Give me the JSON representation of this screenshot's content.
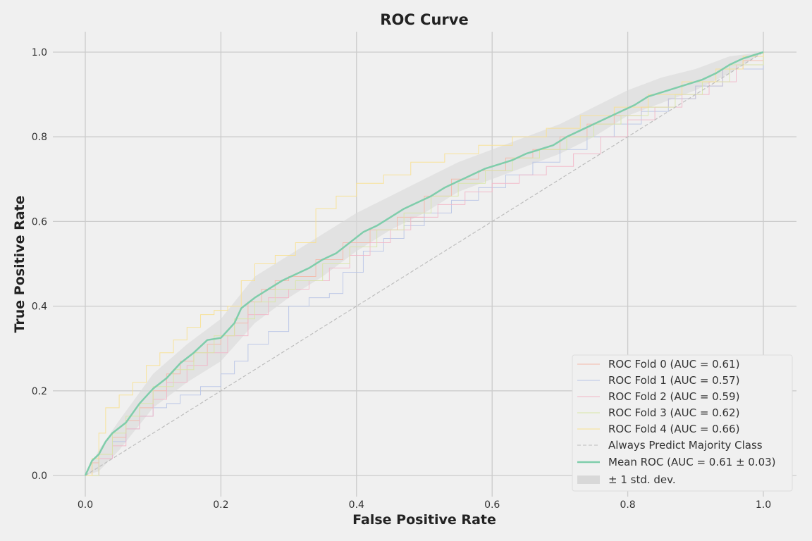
{
  "chart_data": {
    "type": "line",
    "title": "ROC Curve",
    "xlabel": "False Positive Rate",
    "ylabel": "True Positive Rate",
    "xlim": [
      -0.05,
      1.05
    ],
    "ylim": [
      -0.05,
      1.05
    ],
    "xticks": [
      "0.0",
      "0.2",
      "0.4",
      "0.6",
      "0.8",
      "1.0"
    ],
    "yticks": [
      "0.0",
      "0.2",
      "0.4",
      "0.6",
      "0.8",
      "1.0"
    ],
    "grid": true,
    "legend_position": "bottom-right",
    "series": [
      {
        "name": "ROC Fold 0 (AUC = 0.61)",
        "color": "#f4b8a8",
        "style": "step",
        "x": [
          0,
          0.01,
          0.02,
          0.04,
          0.06,
          0.08,
          0.1,
          0.12,
          0.14,
          0.16,
          0.18,
          0.2,
          0.22,
          0.24,
          0.26,
          0.28,
          0.3,
          0.34,
          0.38,
          0.42,
          0.46,
          0.5,
          0.54,
          0.58,
          0.62,
          0.66,
          0.7,
          0.74,
          0.78,
          0.82,
          0.86,
          0.9,
          0.94,
          0.97,
          1
        ],
        "y": [
          0,
          0.03,
          0.05,
          0.09,
          0.13,
          0.16,
          0.2,
          0.24,
          0.27,
          0.29,
          0.31,
          0.33,
          0.36,
          0.41,
          0.44,
          0.46,
          0.47,
          0.51,
          0.55,
          0.58,
          0.61,
          0.66,
          0.7,
          0.72,
          0.75,
          0.77,
          0.8,
          0.83,
          0.85,
          0.87,
          0.89,
          0.92,
          0.96,
          0.98,
          1
        ]
      },
      {
        "name": "ROC Fold 1 (AUC = 0.57)",
        "color": "#b8c4e6",
        "style": "step",
        "x": [
          0,
          0.02,
          0.04,
          0.06,
          0.08,
          0.1,
          0.12,
          0.14,
          0.17,
          0.2,
          0.22,
          0.24,
          0.27,
          0.3,
          0.33,
          0.36,
          0.38,
          0.41,
          0.44,
          0.47,
          0.5,
          0.54,
          0.58,
          0.62,
          0.66,
          0.7,
          0.74,
          0.78,
          0.82,
          0.86,
          0.9,
          0.94,
          1
        ],
        "y": [
          0,
          0.04,
          0.08,
          0.11,
          0.14,
          0.16,
          0.17,
          0.19,
          0.21,
          0.24,
          0.27,
          0.31,
          0.34,
          0.4,
          0.42,
          0.43,
          0.48,
          0.53,
          0.56,
          0.59,
          0.62,
          0.65,
          0.68,
          0.71,
          0.74,
          0.77,
          0.8,
          0.83,
          0.86,
          0.89,
          0.92,
          0.96,
          1
        ]
      },
      {
        "name": "ROC Fold 2 (AUC = 0.59)",
        "color": "#f2b6c6",
        "style": "step",
        "x": [
          0,
          0.02,
          0.04,
          0.06,
          0.08,
          0.1,
          0.12,
          0.15,
          0.18,
          0.21,
          0.24,
          0.27,
          0.3,
          0.33,
          0.36,
          0.39,
          0.42,
          0.45,
          0.48,
          0.52,
          0.56,
          0.6,
          0.64,
          0.68,
          0.72,
          0.76,
          0.8,
          0.84,
          0.88,
          0.92,
          0.96,
          1
        ],
        "y": [
          0,
          0.04,
          0.07,
          0.11,
          0.14,
          0.18,
          0.22,
          0.26,
          0.29,
          0.33,
          0.38,
          0.42,
          0.44,
          0.46,
          0.49,
          0.52,
          0.55,
          0.58,
          0.61,
          0.64,
          0.67,
          0.69,
          0.71,
          0.73,
          0.76,
          0.8,
          0.84,
          0.87,
          0.9,
          0.93,
          0.97,
          1
        ]
      },
      {
        "name": "ROC Fold 3 (AUC = 0.62)",
        "color": "#d8e6a6",
        "style": "step",
        "x": [
          0,
          0.02,
          0.04,
          0.06,
          0.08,
          0.1,
          0.13,
          0.16,
          0.19,
          0.22,
          0.25,
          0.28,
          0.31,
          0.35,
          0.39,
          0.43,
          0.47,
          0.51,
          0.55,
          0.59,
          0.63,
          0.67,
          0.71,
          0.75,
          0.79,
          0.83,
          0.87,
          0.91,
          0.95,
          1
        ],
        "y": [
          0,
          0.05,
          0.1,
          0.14,
          0.17,
          0.21,
          0.25,
          0.29,
          0.33,
          0.37,
          0.41,
          0.44,
          0.46,
          0.5,
          0.54,
          0.58,
          0.62,
          0.66,
          0.69,
          0.72,
          0.75,
          0.77,
          0.8,
          0.83,
          0.85,
          0.87,
          0.9,
          0.93,
          0.97,
          1
        ]
      },
      {
        "name": "ROC Fold 4 (AUC = 0.66)",
        "color": "#f8e090",
        "style": "step",
        "x": [
          0,
          0.01,
          0.02,
          0.03,
          0.05,
          0.07,
          0.09,
          0.11,
          0.13,
          0.15,
          0.17,
          0.19,
          0.21,
          0.23,
          0.25,
          0.28,
          0.31,
          0.34,
          0.37,
          0.4,
          0.44,
          0.48,
          0.53,
          0.58,
          0.63,
          0.68,
          0.73,
          0.78,
          0.83,
          0.88,
          0.93,
          0.97,
          1
        ],
        "y": [
          0,
          0.04,
          0.1,
          0.16,
          0.19,
          0.22,
          0.26,
          0.29,
          0.32,
          0.35,
          0.38,
          0.39,
          0.4,
          0.46,
          0.5,
          0.52,
          0.55,
          0.63,
          0.66,
          0.69,
          0.71,
          0.74,
          0.76,
          0.78,
          0.8,
          0.82,
          0.85,
          0.87,
          0.9,
          0.93,
          0.96,
          0.99,
          1
        ]
      },
      {
        "name": "Always Predict Majority Class",
        "color": "#bdbdbd",
        "style": "dashed",
        "x": [
          0,
          1
        ],
        "y": [
          0,
          1
        ]
      },
      {
        "name": "Mean ROC (AUC = 0.61 ± 0.03)",
        "color": "#7fcdab",
        "style": "solid",
        "x": [
          0,
          0.01,
          0.02,
          0.03,
          0.04,
          0.06,
          0.08,
          0.1,
          0.12,
          0.14,
          0.16,
          0.18,
          0.2,
          0.22,
          0.23,
          0.25,
          0.27,
          0.29,
          0.31,
          0.33,
          0.35,
          0.37,
          0.39,
          0.41,
          0.43,
          0.45,
          0.47,
          0.49,
          0.51,
          0.53,
          0.55,
          0.57,
          0.59,
          0.61,
          0.63,
          0.65,
          0.67,
          0.69,
          0.71,
          0.73,
          0.75,
          0.77,
          0.79,
          0.81,
          0.83,
          0.85,
          0.87,
          0.89,
          0.91,
          0.93,
          0.95,
          0.97,
          1
        ],
        "y": [
          0,
          0.035,
          0.05,
          0.08,
          0.1,
          0.125,
          0.17,
          0.205,
          0.23,
          0.265,
          0.29,
          0.32,
          0.325,
          0.36,
          0.395,
          0.42,
          0.44,
          0.46,
          0.475,
          0.49,
          0.51,
          0.525,
          0.55,
          0.575,
          0.59,
          0.61,
          0.63,
          0.645,
          0.66,
          0.68,
          0.695,
          0.71,
          0.725,
          0.735,
          0.745,
          0.76,
          0.77,
          0.78,
          0.8,
          0.815,
          0.83,
          0.845,
          0.86,
          0.875,
          0.895,
          0.905,
          0.915,
          0.925,
          0.935,
          0.95,
          0.97,
          0.985,
          1
        ]
      },
      {
        "name": "± 1 std. dev.",
        "color": "#d8d8d8",
        "style": "band",
        "x": [
          0,
          0.02,
          0.05,
          0.1,
          0.15,
          0.2,
          0.25,
          0.3,
          0.35,
          0.4,
          0.45,
          0.5,
          0.55,
          0.6,
          0.65,
          0.7,
          0.75,
          0.8,
          0.85,
          0.9,
          0.95,
          1
        ],
        "lower": [
          0,
          0.01,
          0.06,
          0.16,
          0.22,
          0.27,
          0.36,
          0.42,
          0.47,
          0.53,
          0.58,
          0.62,
          0.67,
          0.7,
          0.73,
          0.76,
          0.8,
          0.85,
          0.88,
          0.91,
          0.95,
          1
        ],
        "upper": [
          0,
          0.06,
          0.13,
          0.24,
          0.31,
          0.37,
          0.47,
          0.52,
          0.57,
          0.62,
          0.66,
          0.7,
          0.74,
          0.77,
          0.8,
          0.83,
          0.87,
          0.91,
          0.94,
          0.96,
          0.99,
          1
        ]
      }
    ]
  }
}
